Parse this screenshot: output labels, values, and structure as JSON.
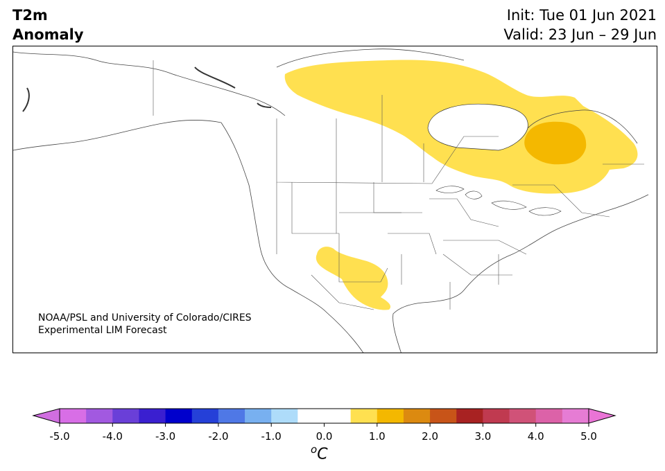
{
  "header": {
    "variable_line1": "T2m",
    "variable_line2": "Anomaly",
    "init_label": "Init: Tue 01 Jun 2021",
    "valid_label": "Valid: 23 Jun – 29 Jun"
  },
  "credit": {
    "line1": "NOAA/PSL and University of Colorado/CIRES",
    "line2": "Experimental LIM Forecast"
  },
  "colorbar": {
    "ticks": [
      "-5.0",
      "-4.0",
      "-3.0",
      "-2.0",
      "-1.0",
      "0.0",
      "1.0",
      "2.0",
      "3.0",
      "4.0",
      "5.0"
    ],
    "unit_sup": "o",
    "unit": "C",
    "colors": [
      "#d86ee6",
      "#a259e0",
      "#6a3fd8",
      "#3a1fd0",
      "#0000cc",
      "#2540d8",
      "#4f78e6",
      "#78b0f0",
      "#aedcfa",
      "#ffffff",
      "#ffffff",
      "#ffe050",
      "#f4b800",
      "#dc8a10",
      "#c85418",
      "#a82222",
      "#c03a50",
      "#d05278",
      "#dc62a8",
      "#e67cd4"
    ],
    "under_color": "#d06ee0",
    "over_color": "#ea74d6"
  },
  "anomaly_regions": [
    {
      "name": "northern canada",
      "level": "0.5 to 1.0",
      "color": "#ffe050"
    },
    {
      "name": "northern quebec core",
      "level": "1.0 to 1.5",
      "color": "#f4b800"
    },
    {
      "name": "southwest us",
      "level": "0.5 to 1.0",
      "color": "#ffe050"
    }
  ]
}
